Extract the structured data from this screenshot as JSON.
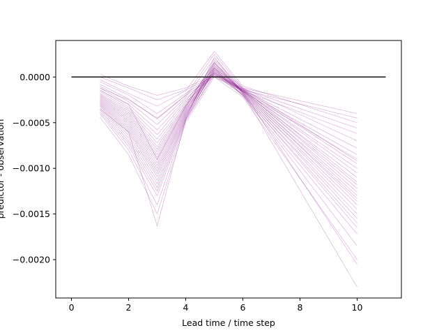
{
  "chart_data": {
    "type": "line",
    "title": "",
    "xlabel": "Lead time / time step",
    "ylabel": "predictor - observation",
    "xlim": [
      -0.55,
      11.55
    ],
    "ylim": [
      -0.00242,
      0.0004
    ],
    "x_ticks": [
      0,
      2,
      4,
      6,
      8,
      10
    ],
    "x_tick_labels": [
      "0",
      "2",
      "4",
      "6",
      "8",
      "10"
    ],
    "y_ticks": [
      0.0,
      -0.0005,
      -0.001,
      -0.0015,
      -0.002
    ],
    "y_tick_labels": [
      "0.0000",
      "−0.0005",
      "−0.0010",
      "−0.0015",
      "−0.0020"
    ],
    "grid": false,
    "legend": "none",
    "reference_line": {
      "x": [
        0,
        11
      ],
      "y": [
        0,
        0
      ],
      "color": "#000000"
    },
    "ensemble_color": "#800080",
    "x": [
      1,
      2,
      3,
      4,
      5,
      6,
      10
    ],
    "series": [
      {
        "values": [
          3e-05,
          -0.0001,
          -0.0002,
          -0.00012,
          3e-05,
          -0.00012,
          -0.0004
        ]
      },
      {
        "values": [
          0.0,
          -0.00012,
          -0.00025,
          -0.00014,
          1e-05,
          -0.00014,
          -0.00045
        ]
      },
      {
        "values": [
          -3e-05,
          -0.00018,
          -0.00032,
          -0.00015,
          0.00028,
          -0.0001,
          -0.0005
        ]
      },
      {
        "values": [
          -5e-05,
          -0.0002,
          -0.0004,
          -0.00018,
          2e-05,
          -0.00013,
          -0.00056
        ]
      },
      {
        "values": [
          -8e-05,
          -0.00024,
          -0.00046,
          -0.0002,
          0.0,
          -0.00015,
          -0.00062
        ]
      },
      {
        "values": [
          -0.0001,
          -0.00027,
          -0.00052,
          -0.00022,
          0.0002,
          -0.00012,
          -0.0007
        ]
      },
      {
        "values": [
          -0.00012,
          -0.0003,
          -0.00058,
          -0.00024,
          5e-05,
          -0.00014,
          -0.00078
        ]
      },
      {
        "values": [
          -0.00014,
          -0.00033,
          -0.00063,
          -0.00026,
          0.0001,
          -0.00015,
          -0.00085
        ]
      },
      {
        "values": [
          -0.00016,
          -0.00035,
          -0.00068,
          -0.00028,
          3e-05,
          -0.00016,
          -0.0009
        ]
      },
      {
        "values": [
          -0.00018,
          -0.00037,
          -0.00072,
          -0.0003,
          0.00015,
          -0.00013,
          -0.00095
        ]
      },
      {
        "values": [
          -0.00019,
          -0.00039,
          -0.00076,
          -0.00031,
          8e-05,
          -0.00015,
          -0.001
        ]
      },
      {
        "values": [
          -0.0002,
          -0.00041,
          -0.00079,
          -0.00032,
          0.00012,
          -0.00014,
          -0.00105
        ]
      },
      {
        "values": [
          -0.00021,
          -0.00043,
          -0.00082,
          -0.00033,
          6e-05,
          -0.00016,
          -0.0011
        ]
      },
      {
        "values": [
          -0.00022,
          -0.00045,
          -0.00085,
          -0.00034,
          0.00018,
          -0.00013,
          -0.00115
        ]
      },
      {
        "values": [
          -0.00023,
          -0.00047,
          -0.00088,
          -0.00035,
          4e-05,
          -0.00015,
          -0.00118
        ]
      },
      {
        "values": [
          -0.00024,
          -0.00049,
          -0.00091,
          -0.00036,
          0.0001,
          -0.00014,
          -0.00122
        ]
      },
      {
        "values": [
          -0.00025,
          -0.00051,
          -0.00094,
          -0.00037,
          0.00014,
          -0.00016,
          -0.00126
        ]
      },
      {
        "values": [
          -0.00026,
          -0.00053,
          -0.00097,
          -0.00038,
          7e-05,
          -0.00015,
          -0.0013
        ]
      },
      {
        "values": [
          -0.00027,
          -0.00055,
          -0.001,
          -0.00039,
          0.00011,
          -0.00017,
          -0.00133
        ]
      },
      {
        "values": [
          -0.00028,
          -0.00057,
          -0.00103,
          -0.0004,
          5e-05,
          -0.00016,
          -0.00136
        ]
      },
      {
        "values": [
          -0.00029,
          -0.00059,
          -0.00106,
          -0.00041,
          9e-05,
          -0.00018,
          -0.0014
        ]
      },
      {
        "values": [
          -0.0003,
          -0.00061,
          -0.00109,
          -0.00042,
          0.00013,
          -0.00017,
          -0.00145
        ]
      },
      {
        "values": [
          -0.00031,
          -0.00064,
          -0.00113,
          -0.00043,
          6e-05,
          -0.00019,
          -0.0015
        ]
      },
      {
        "values": [
          -0.00032,
          -0.00067,
          -0.00117,
          -0.00044,
          0.00016,
          -0.00018,
          -0.00155
        ]
      },
      {
        "values": [
          -0.00034,
          -0.0007,
          -0.00121,
          -0.00045,
          8e-05,
          -0.0002,
          -0.0016
        ]
      },
      {
        "values": [
          -0.00036,
          -0.00073,
          -0.00125,
          -0.00046,
          2e-05,
          -0.00019,
          -0.00165
        ]
      },
      {
        "values": [
          -0.00038,
          -0.00076,
          -0.0013,
          -0.00047,
          0.0001,
          -0.00021,
          -0.00172
        ]
      },
      {
        "values": [
          -0.0004,
          -0.0008,
          -0.0014,
          -0.00048,
          4e-05,
          -0.0002,
          -0.00185
        ]
      },
      {
        "values": [
          -0.00044,
          -0.00085,
          -0.0015,
          -0.0005,
          0.0,
          -0.00022,
          -0.002
        ]
      },
      {
        "values": [
          -0.00035,
          -0.0006,
          -0.00163,
          -0.00046,
          0.00022,
          -0.00018,
          -0.0023
        ]
      },
      {
        "values": [
          -0.00015,
          -0.0003,
          -0.0009,
          -0.00032,
          0.00016,
          -0.00016,
          -0.00205
        ]
      },
      {
        "values": [
          -0.00012,
          -0.00025,
          -0.00045,
          -0.0002,
          0.00025,
          -0.00012,
          -0.00092
        ]
      }
    ]
  }
}
